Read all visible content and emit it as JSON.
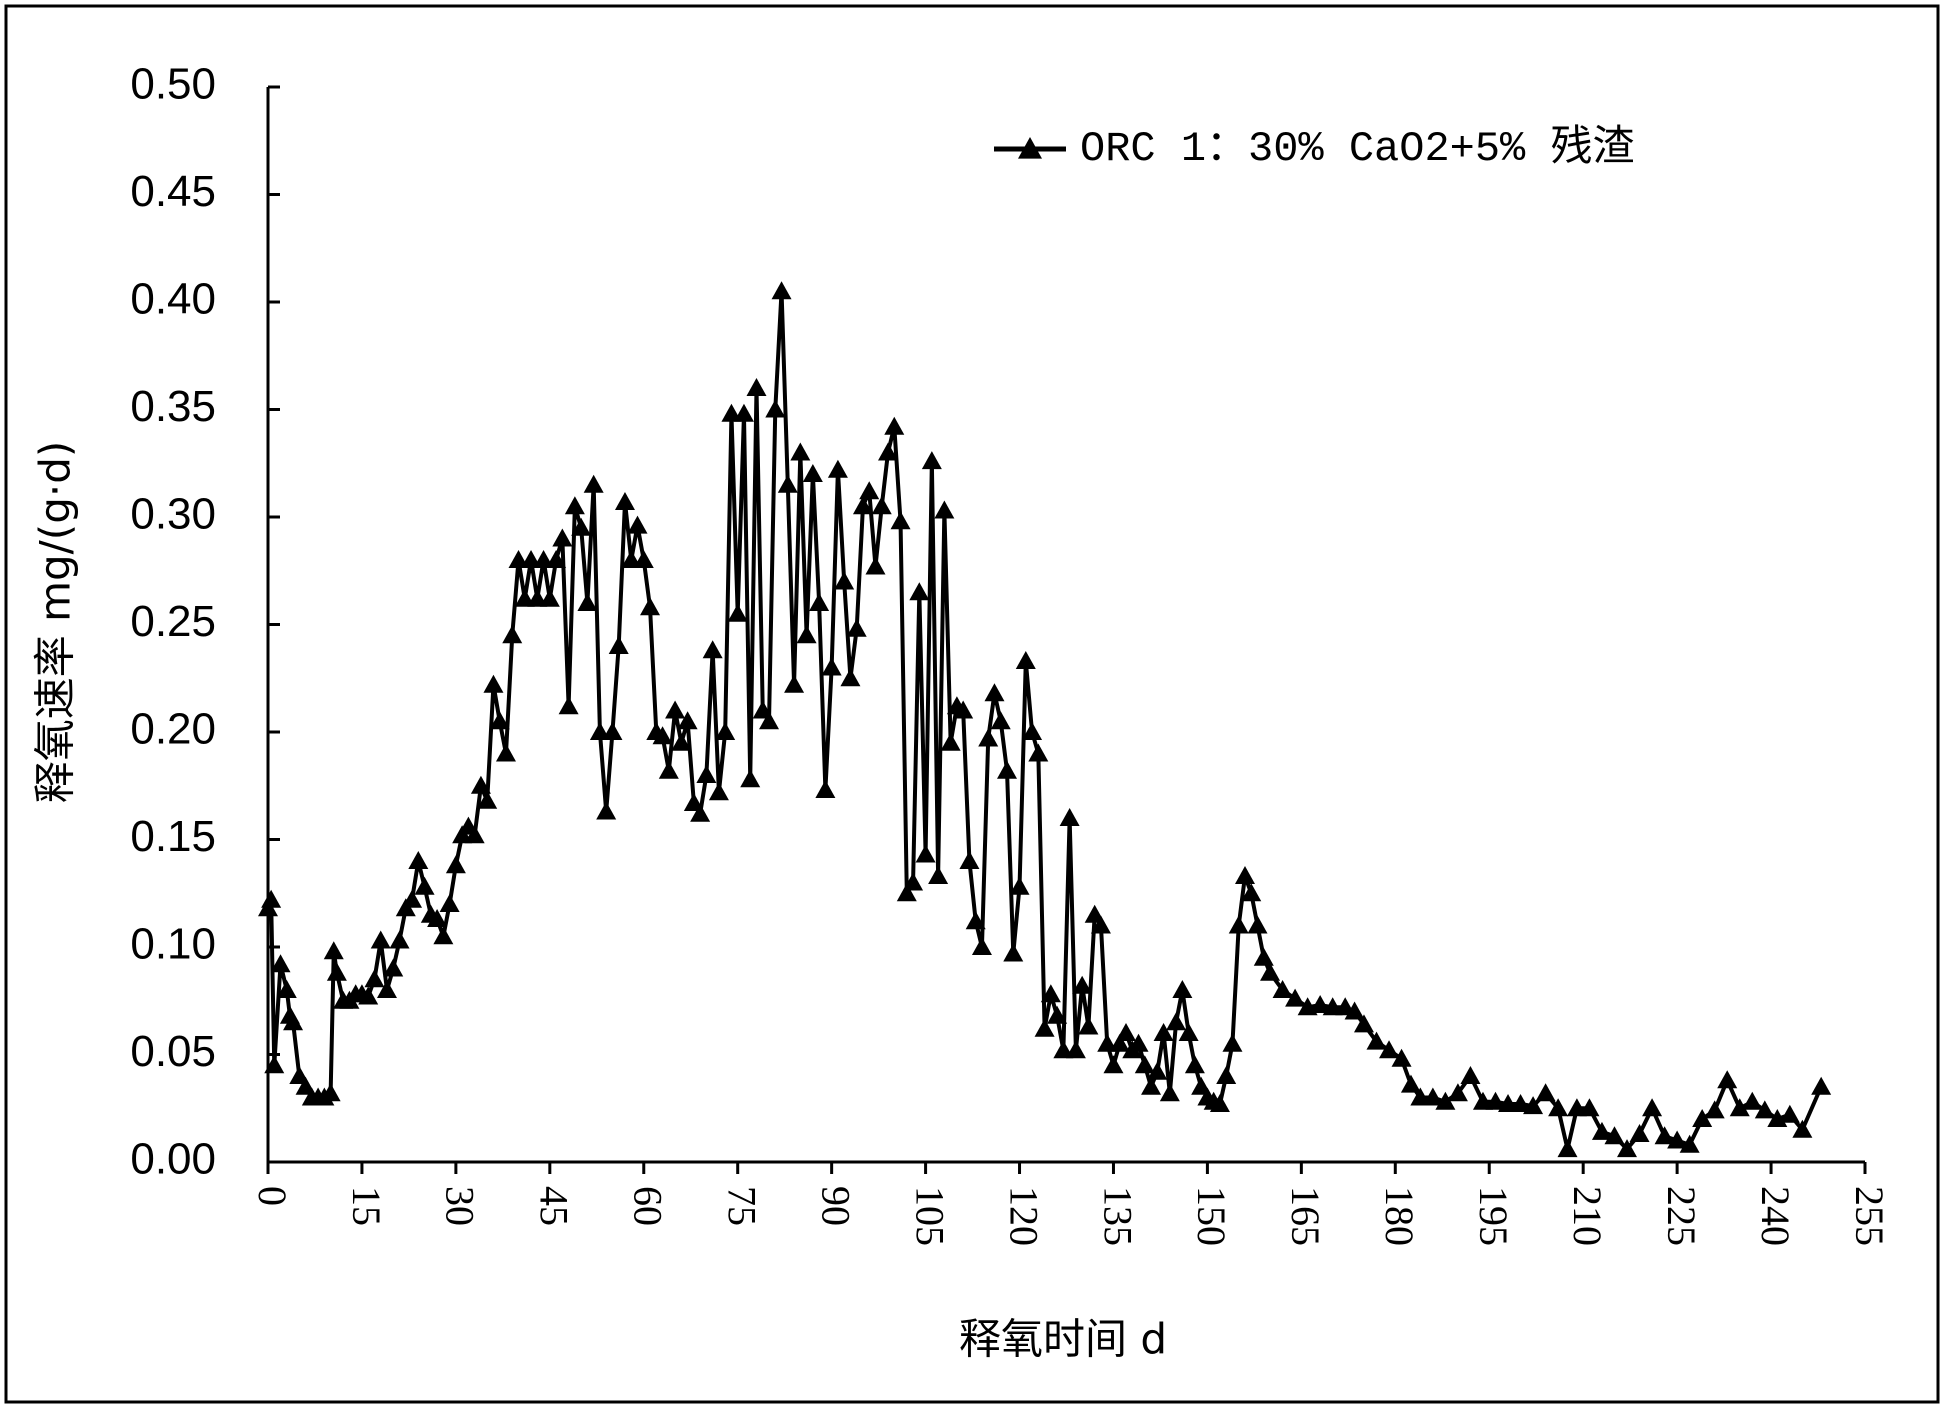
{
  "chart_data": {
    "type": "line",
    "xlabel": "释氧时间 d",
    "ylabel": "释氧速率 mg/(g·d)",
    "xlim": [
      0,
      255
    ],
    "xticks": [
      0,
      15,
      30,
      45,
      60,
      75,
      90,
      105,
      120,
      135,
      150,
      165,
      180,
      195,
      210,
      225,
      240,
      255
    ],
    "ylim": [
      0,
      0.5
    ],
    "yticks": [
      {
        "value": 0,
        "label": "0.00"
      },
      0.05,
      {
        "value": 0.1,
        "label": "0.10"
      },
      0.15,
      {
        "value": 0.2,
        "label": "0.20"
      },
      0.25,
      {
        "value": 0.3,
        "label": "0.30"
      },
      0.35,
      {
        "value": 0.4,
        "label": "0.40"
      },
      0.45,
      {
        "value": 0.5,
        "label": "0.50"
      }
    ],
    "legend": "top-right",
    "series": [
      {
        "name": "ORC 1：30% CaO2+5% 残渣",
        "color": "#000000",
        "marker": "triangle",
        "x": [
          0,
          0.5,
          1,
          2,
          3,
          3.5,
          4,
          5,
          6,
          7,
          8,
          9,
          10,
          10.5,
          11,
          12,
          13,
          14,
          15,
          16,
          17,
          18,
          19,
          20,
          21,
          22,
          23,
          24,
          25,
          26,
          27,
          28,
          29,
          30,
          31,
          32,
          33,
          34,
          35,
          36,
          37,
          38,
          39,
          40,
          41,
          42,
          43,
          44,
          45,
          46,
          47,
          48,
          49,
          50,
          51,
          52,
          53,
          54,
          55,
          56,
          57,
          58,
          59,
          60,
          61,
          62,
          63,
          64,
          65,
          66,
          67,
          68,
          69,
          70,
          71,
          72,
          73,
          74,
          75,
          76,
          77,
          78,
          79,
          80,
          81,
          82,
          83,
          84,
          85,
          86,
          87,
          88,
          89,
          90,
          91,
          92,
          93,
          94,
          95,
          96,
          97,
          98,
          99,
          100,
          101,
          102,
          103,
          104,
          105,
          106,
          107,
          108,
          109,
          110,
          111,
          112,
          113,
          114,
          115,
          116,
          117,
          118,
          119,
          120,
          121,
          122,
          123,
          124,
          125,
          126,
          127,
          128,
          129,
          130,
          131,
          132,
          133,
          134,
          135,
          136,
          137,
          138,
          139,
          140,
          141,
          142,
          143,
          144,
          145,
          146,
          147,
          148,
          149,
          150,
          151,
          152,
          153,
          154,
          155,
          156,
          157,
          158,
          159,
          160,
          162,
          164,
          166,
          168,
          170,
          172,
          173.5,
          175,
          177,
          179,
          181,
          182.5,
          184,
          186,
          188,
          190,
          192,
          194,
          196,
          198,
          200,
          202,
          204,
          206,
          207.5,
          209,
          211,
          213,
          215,
          217,
          219,
          221,
          223,
          225,
          227,
          229,
          231,
          233,
          235,
          237,
          239,
          241,
          243,
          245,
          248
        ],
        "values": [
          0.118,
          0.122,
          0.045,
          0.092,
          0.08,
          0.068,
          0.065,
          0.04,
          0.035,
          0.03,
          0.03,
          0.03,
          0.032,
          0.098,
          0.088,
          0.075,
          0.075,
          0.078,
          0.078,
          0.077,
          0.085,
          0.103,
          0.08,
          0.09,
          0.103,
          0.118,
          0.122,
          0.14,
          0.128,
          0.115,
          0.113,
          0.105,
          0.12,
          0.138,
          0.152,
          0.156,
          0.152,
          0.175,
          0.168,
          0.222,
          0.205,
          0.19,
          0.245,
          0.28,
          0.262,
          0.28,
          0.262,
          0.28,
          0.262,
          0.28,
          0.29,
          0.212,
          0.305,
          0.295,
          0.26,
          0.315,
          0.2,
          0.163,
          0.2,
          0.24,
          0.307,
          0.28,
          0.296,
          0.28,
          0.258,
          0.2,
          0.198,
          0.182,
          0.21,
          0.195,
          0.205,
          0.167,
          0.162,
          0.18,
          0.238,
          0.172,
          0.2,
          0.348,
          0.255,
          0.348,
          0.178,
          0.36,
          0.21,
          0.205,
          0.35,
          0.405,
          0.315,
          0.222,
          0.33,
          0.245,
          0.32,
          0.26,
          0.173,
          0.23,
          0.322,
          0.27,
          0.225,
          0.248,
          0.305,
          0.312,
          0.277,
          0.305,
          0.33,
          0.342,
          0.298,
          0.125,
          0.13,
          0.265,
          0.143,
          0.326,
          0.133,
          0.303,
          0.195,
          0.212,
          0.21,
          0.14,
          0.112,
          0.1,
          0.197,
          0.218,
          0.205,
          0.182,
          0.097,
          0.128,
          0.233,
          0.2,
          0.19,
          0.062,
          0.078,
          0.068,
          0.052,
          0.16,
          0.052,
          0.082,
          0.063,
          0.115,
          0.11,
          0.055,
          0.045,
          0.055,
          0.06,
          0.052,
          0.055,
          0.045,
          0.035,
          0.042,
          0.06,
          0.032,
          0.065,
          0.08,
          0.06,
          0.045,
          0.035,
          0.03,
          0.028,
          0.027,
          0.04,
          0.055,
          0.11,
          0.133,
          0.125,
          0.11,
          0.095,
          0.088,
          0.08,
          0.076,
          0.072,
          0.073,
          0.072,
          0.072,
          0.07,
          0.064,
          0.056,
          0.052,
          0.048,
          0.036,
          0.03,
          0.03,
          0.028,
          0.032,
          0.04,
          0.028,
          0.028,
          0.027,
          0.027,
          0.026,
          0.032,
          0.025,
          0.006,
          0.025,
          0.025,
          0.014,
          0.012,
          0.006,
          0.013,
          0.025,
          0.012,
          0.01,
          0.008,
          0.02,
          0.024,
          0.038,
          0.025,
          0.028,
          0.024,
          0.02,
          0.022,
          0.015,
          0.035
        ]
      }
    ]
  }
}
